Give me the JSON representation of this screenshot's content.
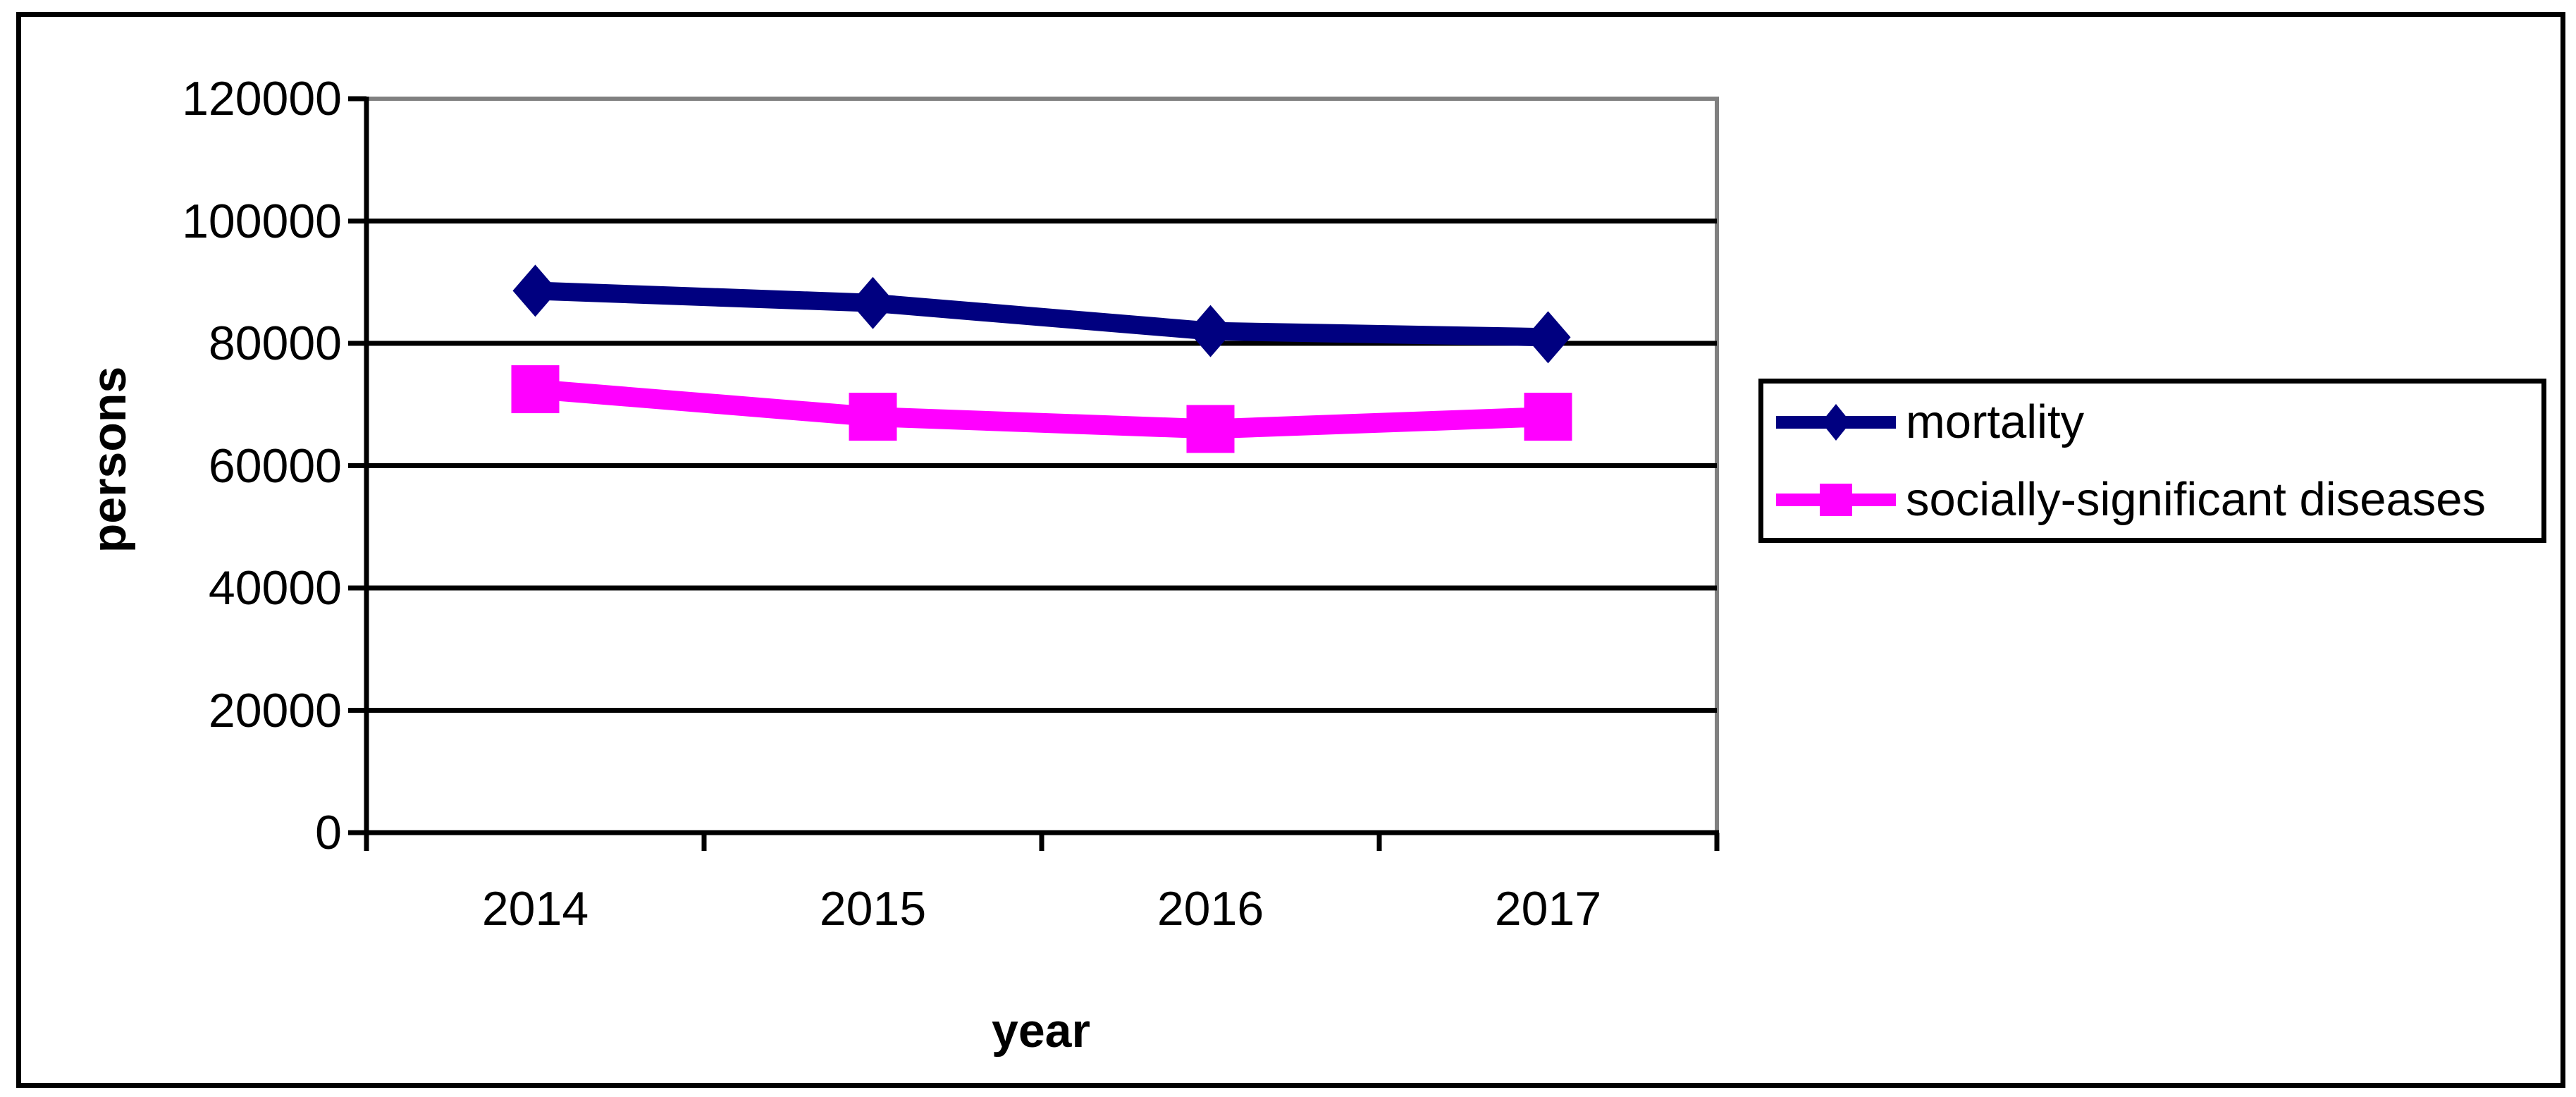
{
  "figure": {
    "background_color": "#FFFFFF",
    "border_color": "#000000"
  },
  "chart_data": {
    "type": "line",
    "title": "",
    "categories": [
      "2014",
      "2015",
      "2016",
      "2017"
    ],
    "series": [
      {
        "name": "mortality",
        "color": "#000080",
        "marker": "diamond",
        "values": [
          88600,
          86600,
          82000,
          81000
        ]
      },
      {
        "name": "socially-significant diseases",
        "color": "#FF00FF",
        "marker": "square",
        "values": [
          72500,
          68000,
          66000,
          68000
        ]
      }
    ],
    "xlabel": "year",
    "ylabel": "persons",
    "ylim": [
      0,
      120000
    ],
    "ytick_step": 20000,
    "ytick_labels": [
      "0",
      "20000",
      "40000",
      "60000",
      "80000",
      "100000",
      "120000"
    ],
    "grid": "horizontal",
    "gridline_color": "#000000",
    "axis_color": "#000000",
    "plot_border_color": "#808080",
    "legend_position": "right"
  }
}
